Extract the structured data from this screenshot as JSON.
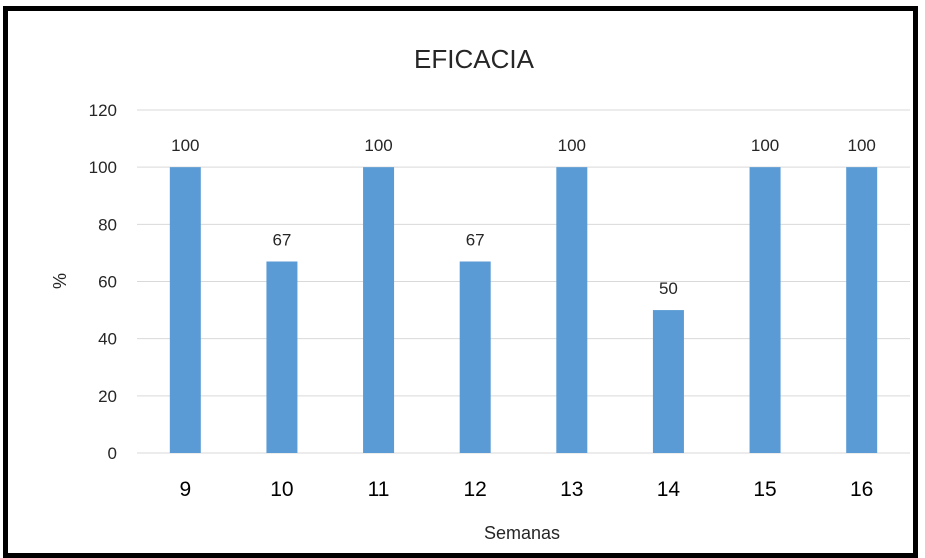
{
  "chart_data": {
    "type": "bar",
    "title": "EFICACIA",
    "xlabel": "Semanas",
    "ylabel": "%",
    "categories": [
      "9",
      "10",
      "11",
      "12",
      "13",
      "14",
      "15",
      "16"
    ],
    "values": [
      100,
      67,
      100,
      67,
      100,
      50,
      100,
      100
    ],
    "data_labels": [
      "100",
      "67",
      "100",
      "67",
      "100",
      "50",
      "100",
      "100"
    ],
    "yticks": [
      "0",
      "20",
      "40",
      "60",
      "80",
      "100",
      "120"
    ],
    "ylim": [
      0,
      120
    ],
    "grid": true,
    "legend": "none",
    "bar_color": "#5B9BD5",
    "gridline_color": "#D9D9D9"
  }
}
